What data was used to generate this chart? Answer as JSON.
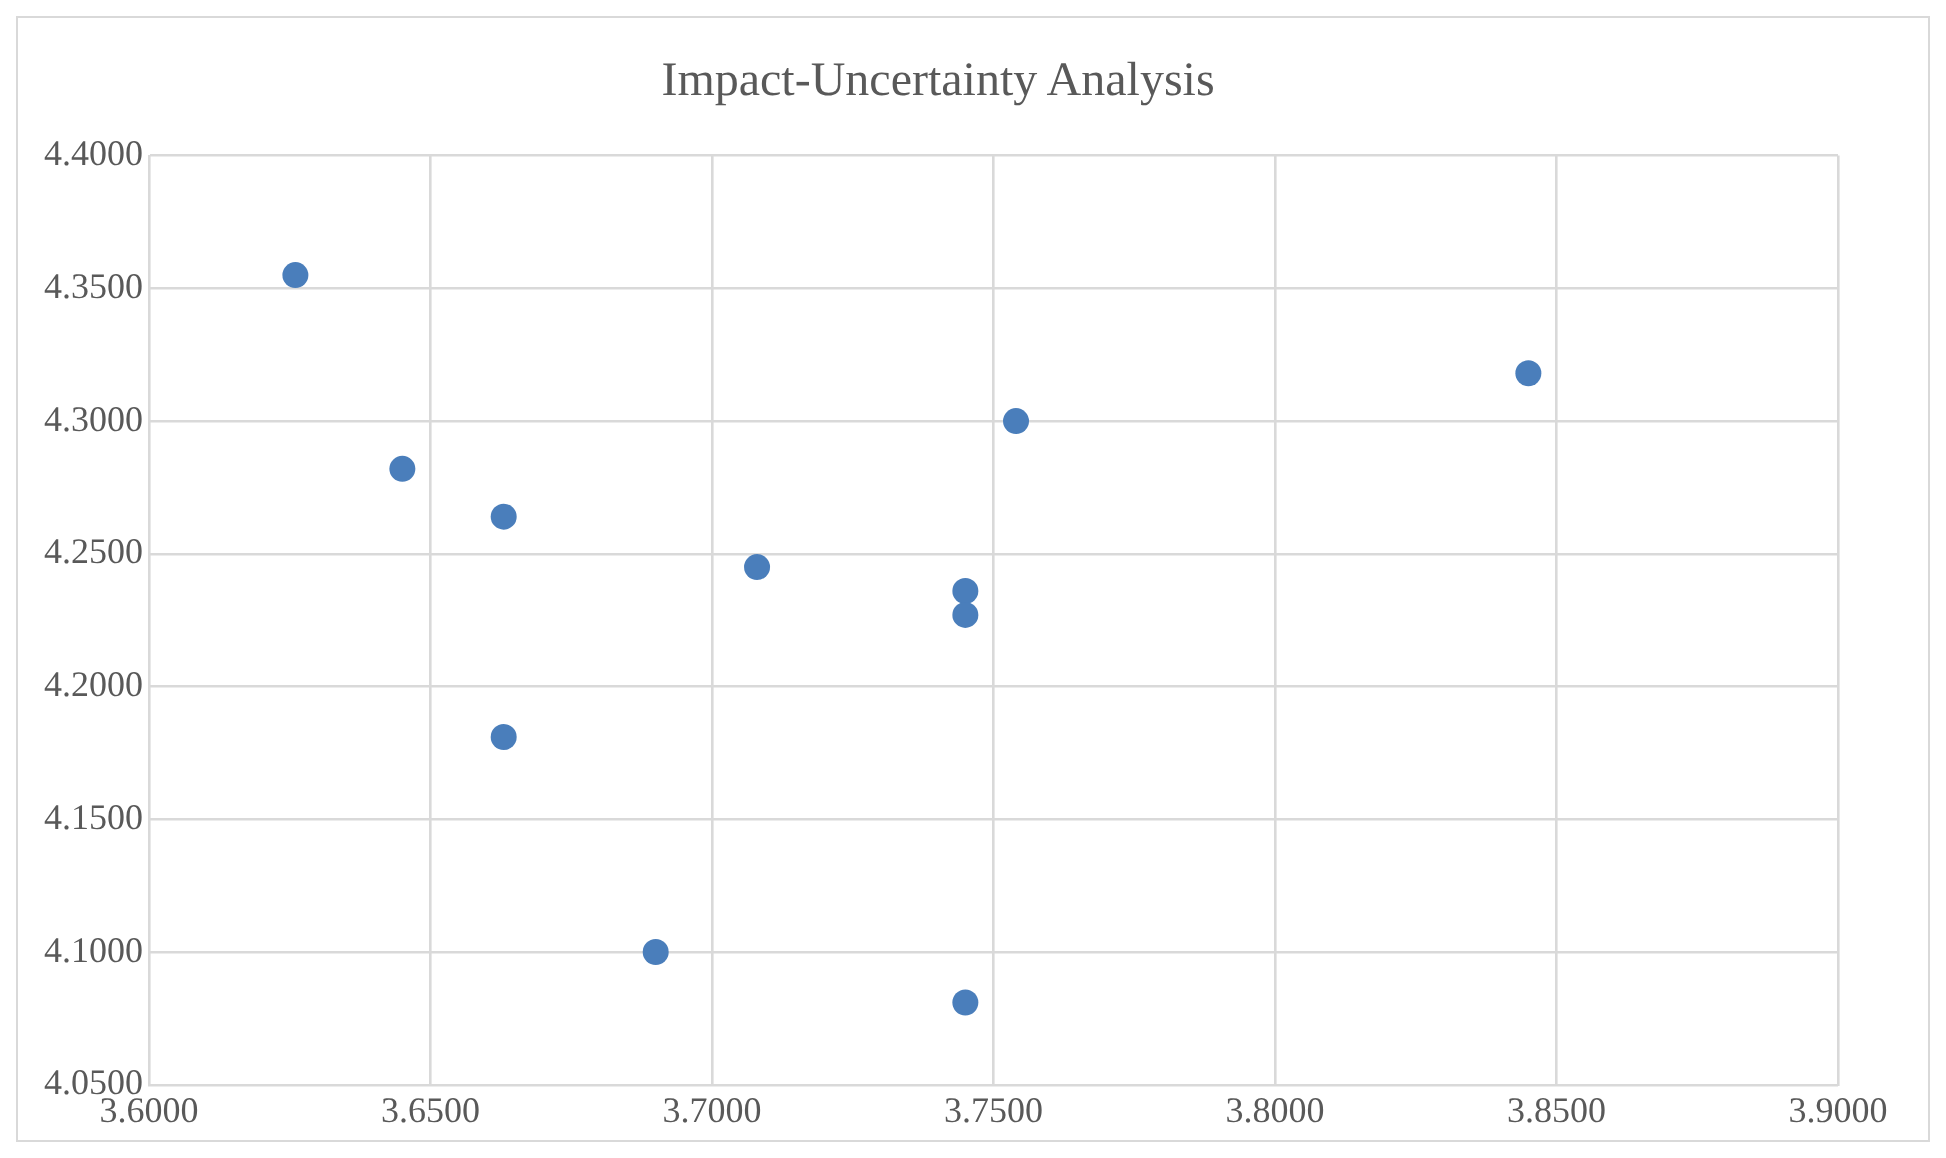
{
  "chart_data": {
    "type": "scatter",
    "title": "Impact-Uncertainty Analysis",
    "x": [
      3.626,
      3.645,
      3.663,
      3.663,
      3.69,
      3.708,
      3.745,
      3.745,
      3.745,
      3.754,
      3.845
    ],
    "series": [
      {
        "color": "#4a7ebb",
        "values": [
          4.355,
          4.282,
          4.264,
          4.181,
          4.1,
          4.245,
          4.236,
          4.227,
          4.081,
          4.3,
          4.318
        ]
      }
    ],
    "xlim": [
      3.6,
      3.9
    ],
    "xticks": [
      {
        "value": 3.6,
        "label": "3.6000"
      },
      {
        "value": 3.65,
        "label": "3.6500"
      },
      {
        "value": 3.7,
        "label": "3.7000"
      },
      {
        "value": 3.75,
        "label": "3.7500"
      },
      {
        "value": 3.8,
        "label": "3.8000"
      },
      {
        "value": 3.85,
        "label": "3.8500"
      },
      {
        "value": 3.9,
        "label": "3.9000"
      }
    ],
    "ylim": [
      4.05,
      4.4
    ],
    "yticks": [
      {
        "value": 4.05,
        "label": "4.0500"
      },
      {
        "value": 4.1,
        "label": "4.1000"
      },
      {
        "value": 4.15,
        "label": "4.1500"
      },
      {
        "value": 4.2,
        "label": "4.2000"
      },
      {
        "value": 4.25,
        "label": "4.2500"
      },
      {
        "value": 4.3,
        "label": "4.3000"
      },
      {
        "value": 4.35,
        "label": "4.3500"
      },
      {
        "value": 4.4,
        "label": "4.4000"
      }
    ],
    "grid": true,
    "marker": "circle",
    "legend": false
  }
}
